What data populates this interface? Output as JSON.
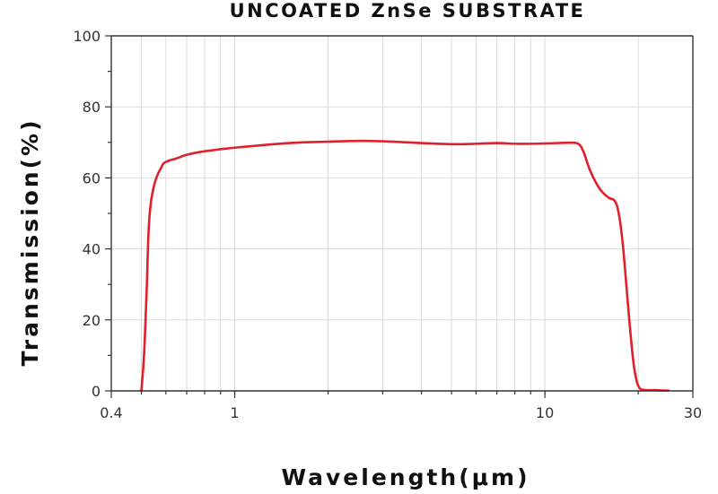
{
  "chart_data": {
    "type": "line",
    "title": "UNCOATED ZnSe SUBSTRATE",
    "xlabel": "Wavelength(μm)",
    "ylabel": "Transmission(%)",
    "x_scale": "log",
    "xlim": [
      0.4,
      30
    ],
    "ylim": [
      0,
      100
    ],
    "x_ticks": [
      0.4,
      1,
      10,
      30
    ],
    "x_tick_labels": [
      "0.4",
      "1",
      "10",
      "30"
    ],
    "y_ticks": [
      0,
      20,
      40,
      60,
      80,
      100
    ],
    "y_tick_labels": [
      "0",
      "20",
      "40",
      "60",
      "80",
      "100"
    ],
    "grid": true,
    "series": [
      {
        "color": "#e0202a",
        "x": [
          0.5,
          0.51,
          0.52,
          0.53,
          0.55,
          0.58,
          0.6,
          0.65,
          0.7,
          0.8,
          1.0,
          1.5,
          2.0,
          2.5,
          3.0,
          4.0,
          5.0,
          6.0,
          7.0,
          8.0,
          9.0,
          10.0,
          11.0,
          12.0,
          12.8,
          13.3,
          14.0,
          15.0,
          16.0,
          16.8,
          17.3,
          17.8,
          18.3,
          18.8,
          19.3,
          19.8,
          20.3,
          20.8,
          21.3,
          22.0,
          23.0,
          24.0,
          25.0
        ],
        "y": [
          0,
          10,
          28,
          48,
          58,
          63,
          64.5,
          65.5,
          66.5,
          67.5,
          68.5,
          69.8,
          70.2,
          70.4,
          70.3,
          69.8,
          69.5,
          69.6,
          69.8,
          69.6,
          69.6,
          69.7,
          69.8,
          69.9,
          69.6,
          67.5,
          62,
          57,
          54.5,
          53.5,
          50,
          42,
          30,
          18,
          8,
          2.5,
          0.6,
          0.3,
          0.2,
          0.2,
          0.2,
          0.1,
          0.1
        ]
      }
    ]
  }
}
